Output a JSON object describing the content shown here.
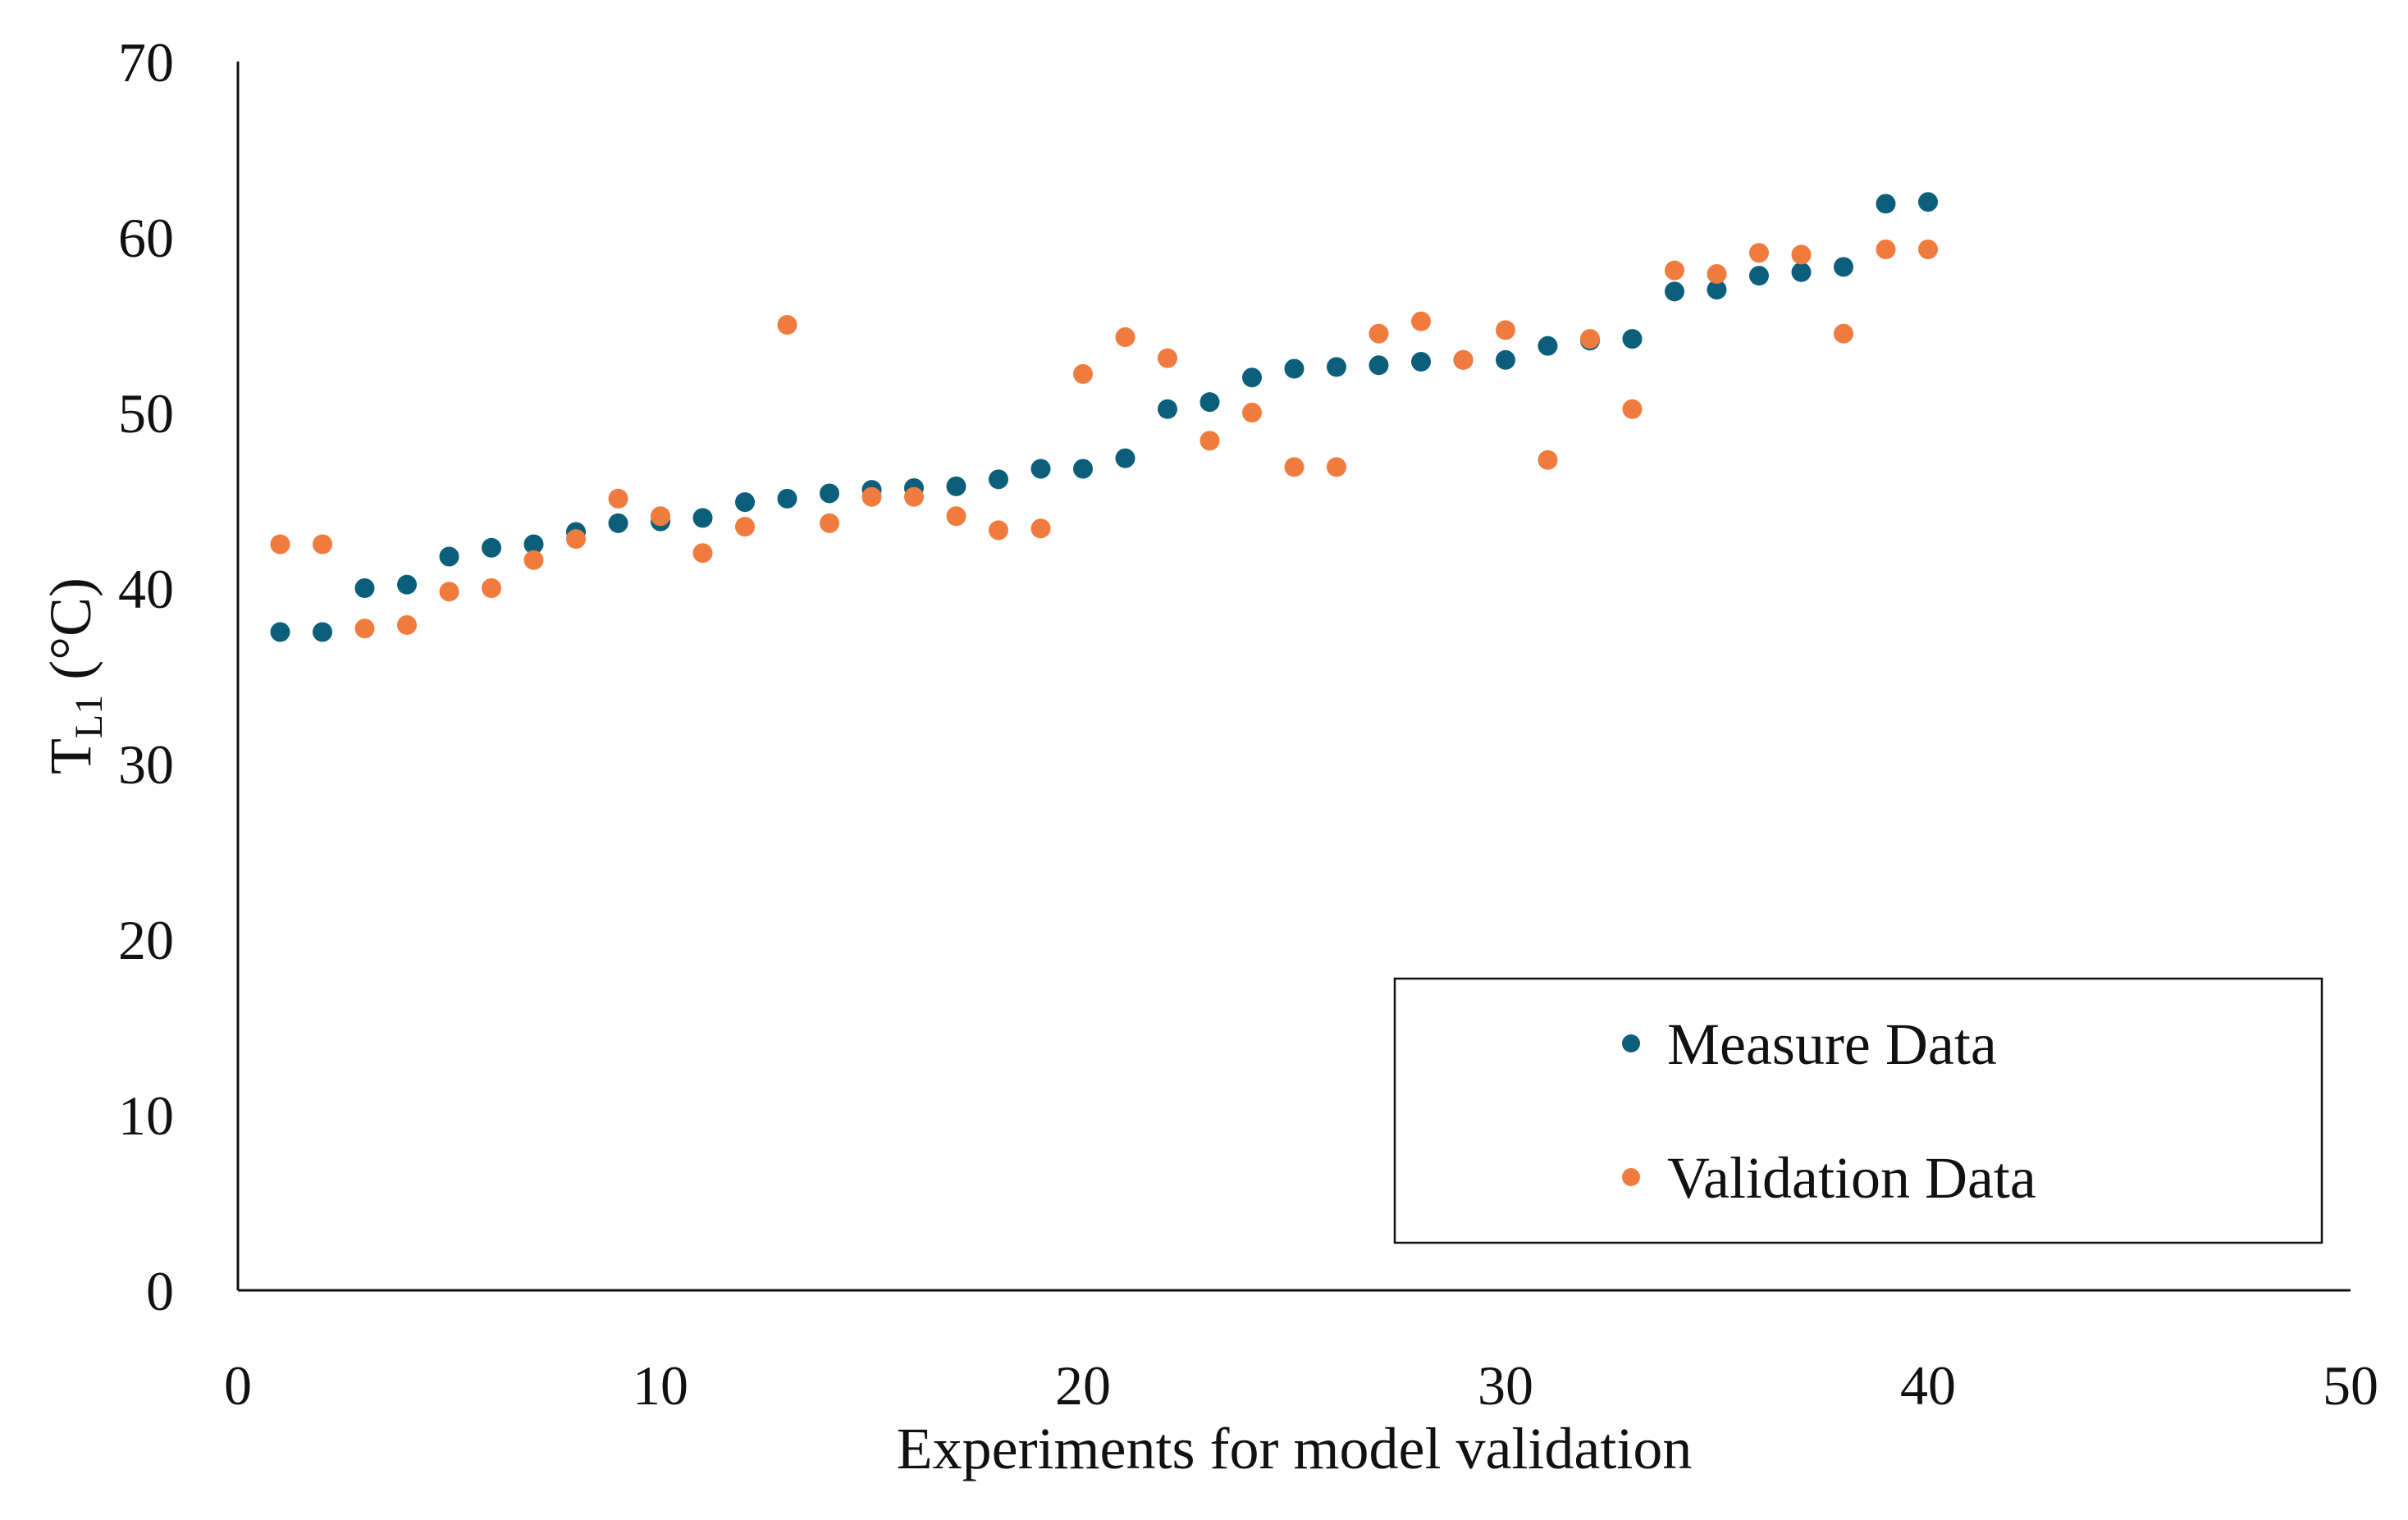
{
  "chart_data": {
    "type": "scatter",
    "title": "",
    "xlabel": "Experiments for model validation",
    "ylabel": {
      "main": "T",
      "subscript": "L1",
      "unit": " (°C)"
    },
    "xlim": [
      0,
      50
    ],
    "ylim": [
      0,
      70
    ],
    "xticks": [
      "0",
      "10",
      "20",
      "30",
      "40",
      "50"
    ],
    "yticks": [
      "0",
      "10",
      "20",
      "30",
      "40",
      "50",
      "60",
      "70"
    ],
    "grid": false,
    "legend_position": "bottom-right",
    "x": [
      1,
      2,
      3,
      4,
      5,
      6,
      7,
      8,
      9,
      10,
      11,
      12,
      13,
      14,
      15,
      16,
      17,
      18,
      19,
      20,
      21,
      22,
      23,
      24,
      25,
      26,
      27,
      28,
      29,
      30,
      31,
      32,
      33,
      34,
      35,
      36,
      37,
      38,
      39,
      40
    ],
    "series": [
      {
        "name": "Measure Data",
        "color": "#0B5F7A",
        "values": [
          37.5,
          37.5,
          40.0,
          40.2,
          41.8,
          42.3,
          42.5,
          43.2,
          43.7,
          43.8,
          44.0,
          44.9,
          45.1,
          45.4,
          45.6,
          45.7,
          45.8,
          46.2,
          46.8,
          46.8,
          47.4,
          50.2,
          50.6,
          52.0,
          52.5,
          52.6,
          52.7,
          52.9,
          53.0,
          53.0,
          53.8,
          54.1,
          54.2,
          56.9,
          57.0,
          57.8,
          58.0,
          58.3,
          61.9,
          62.0
        ]
      },
      {
        "name": "Validation Data",
        "color": "#F07B3F",
        "values": [
          42.5,
          42.5,
          37.7,
          37.9,
          39.8,
          40.0,
          41.6,
          42.8,
          45.1,
          44.1,
          42.0,
          43.5,
          55.0,
          43.7,
          45.2,
          45.2,
          44.1,
          43.3,
          43.4,
          52.2,
          54.3,
          53.1,
          48.4,
          50.0,
          46.9,
          46.9,
          54.5,
          55.2,
          53.0,
          54.7,
          47.3,
          54.2,
          50.2,
          58.1,
          57.9,
          59.1,
          59.0,
          54.5,
          59.3,
          59.3
        ]
      }
    ]
  }
}
